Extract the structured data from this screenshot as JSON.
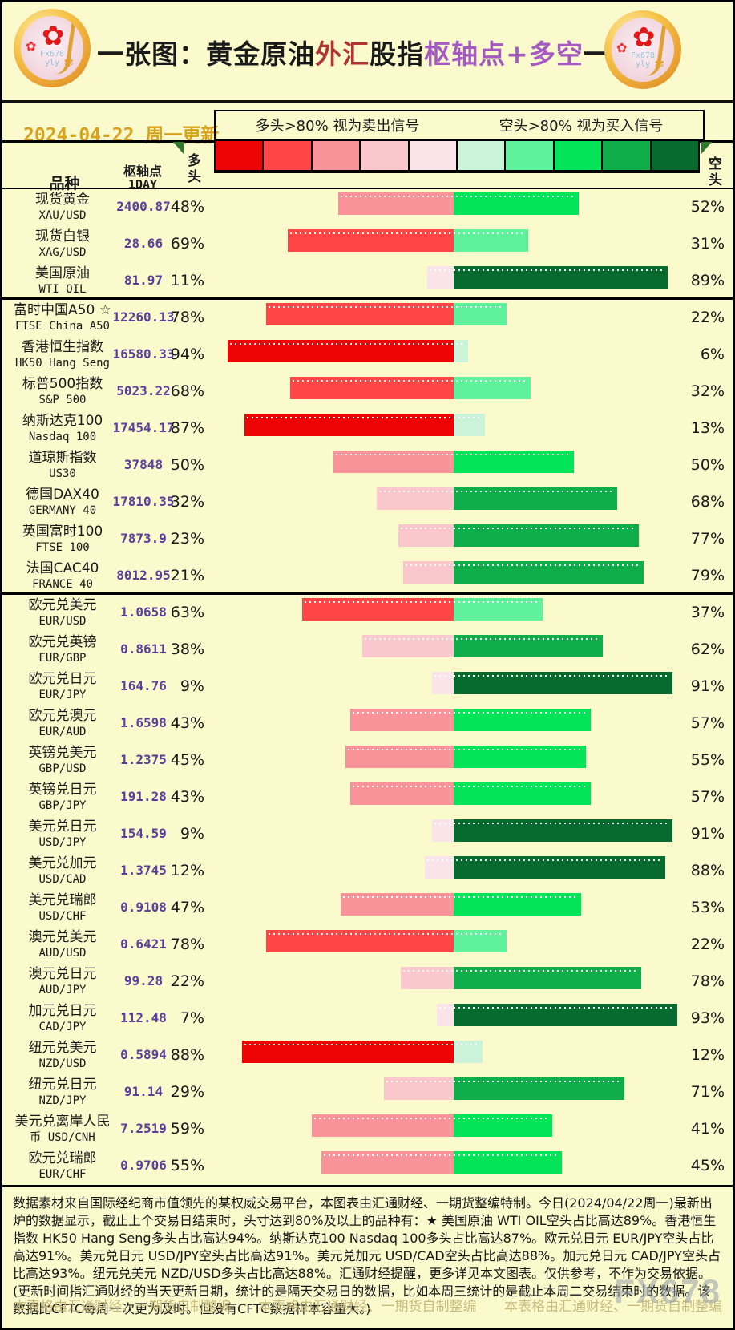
{
  "header": {
    "title_parts": [
      {
        "text": "一张图：黄金原油",
        "color": "#1a1a1a"
      },
      {
        "text": "外汇",
        "color": "#b03434"
      },
      {
        "text": "股指",
        "color": "#1a1a1a"
      },
      {
        "text": "枢轴点+多空",
        "color": "#a55ac2"
      },
      {
        "text": "一览",
        "color": "#1a1a1a"
      }
    ],
    "date": "2024-04-22 周一更新",
    "logo_mark_line1": "Fx678",
    "logo_mark_line2": "yly"
  },
  "legend": {
    "long_note": "多头>80% 视为卖出信号",
    "short_note": "空头>80% 视为买入信号"
  },
  "columns": {
    "product": "品种",
    "pivot_line1": "枢轴点",
    "pivot_line2": "1DAY",
    "long": "多头",
    "short": "空头"
  },
  "rows": [
    {
      "name": "现货黄金",
      "code": "XAU/USD",
      "pivot": "2400.87",
      "long": 48,
      "short": 52
    },
    {
      "name": "现货白银",
      "code": "XAG/USD",
      "pivot": "28.66",
      "long": 69,
      "short": 31
    },
    {
      "name": "美国原油",
      "code": "WTI OIL",
      "pivot": "81.97",
      "long": 11,
      "short": 89,
      "sep": true
    },
    {
      "name": "富时中国A50 ☆",
      "code": "FTSE China A50",
      "pivot": "12260.13",
      "long": 78,
      "short": 22
    },
    {
      "name": "香港恒生指数",
      "code": "HK50 Hang Seng",
      "pivot": "16580.33",
      "long": 94,
      "short": 6
    },
    {
      "name": "标普500指数",
      "code": "S&P 500",
      "pivot": "5023.22",
      "long": 68,
      "short": 32
    },
    {
      "name": "纳斯达克100",
      "code": "Nasdaq 100",
      "pivot": "17454.17",
      "long": 87,
      "short": 13
    },
    {
      "name": "道琼斯指数",
      "code": "US30",
      "pivot": "37848",
      "long": 50,
      "short": 50
    },
    {
      "name": "德国DAX40",
      "code": "GERMANY 40",
      "pivot": "17810.35",
      "long": 32,
      "short": 68
    },
    {
      "name": "英国富时100",
      "code": "FTSE 100",
      "pivot": "7873.9",
      "long": 23,
      "short": 77
    },
    {
      "name": "法国CAC40",
      "code": "FRANCE 40",
      "pivot": "8012.95",
      "long": 21,
      "short": 79,
      "sep": true
    },
    {
      "name": "欧元兑美元",
      "code": "EUR/USD",
      "pivot": "1.0658",
      "long": 63,
      "short": 37
    },
    {
      "name": "欧元兑英镑",
      "code": "EUR/GBP",
      "pivot": "0.8611",
      "long": 38,
      "short": 62
    },
    {
      "name": "欧元兑日元",
      "code": "EUR/JPY",
      "pivot": "164.76",
      "long": 9,
      "short": 91
    },
    {
      "name": "欧元兑澳元",
      "code": "EUR/AUD",
      "pivot": "1.6598",
      "long": 43,
      "short": 57
    },
    {
      "name": "英镑兑美元",
      "code": "GBP/USD",
      "pivot": "1.2375",
      "long": 45,
      "short": 55
    },
    {
      "name": "英镑兑日元",
      "code": "GBP/JPY",
      "pivot": "191.28",
      "long": 43,
      "short": 57
    },
    {
      "name": "美元兑日元",
      "code": "USD/JPY",
      "pivot": "154.59",
      "long": 9,
      "short": 91
    },
    {
      "name": "美元兑加元",
      "code": "USD/CAD",
      "pivot": "1.3745",
      "long": 12,
      "short": 88
    },
    {
      "name": "美元兑瑞郎",
      "code": "USD/CHF",
      "pivot": "0.9108",
      "long": 47,
      "short": 53
    },
    {
      "name": "澳元兑美元",
      "code": "AUD/USD",
      "pivot": "0.6421",
      "long": 78,
      "short": 22
    },
    {
      "name": "澳元兑日元",
      "code": "AUD/JPY",
      "pivot": "99.28",
      "long": 22,
      "short": 78
    },
    {
      "name": "加元兑日元",
      "code": "CAD/JPY",
      "pivot": "112.48",
      "long": 7,
      "short": 93
    },
    {
      "name": "纽元兑美元",
      "code": "NZD/USD",
      "pivot": "0.5894",
      "long": 88,
      "short": 12
    },
    {
      "name": "纽元兑日元",
      "code": "NZD/JPY",
      "pivot": "91.14",
      "long": 29,
      "short": 71
    },
    {
      "name": "美元兑离岸人民",
      "code": "USD/CNH",
      "name2": "币",
      "pivot": "7.2519",
      "long": 59,
      "short": 41
    },
    {
      "name": "欧元兑瑞郎",
      "code": "EUR/CHF",
      "pivot": "0.9706",
      "long": 55,
      "short": 45
    }
  ],
  "chart_data": {
    "type": "bar",
    "subtype": "diverging-horizontal",
    "title": "一张图：黄金原油外汇股指枢轴点+多空一览",
    "legend_position": "top",
    "scale_colors": [
      "#ee0404",
      "#ff4646",
      "#f89399",
      "#fac7cd",
      "#fbe3ea",
      "#cbf3da",
      "#5ff29c",
      "#03e458",
      "#0fae4b",
      "#076b2f"
    ],
    "color_rule": "bucket of 20% picks swatch: 多头 80-100→darkest red … 0-19→palest pink; 空头 0-19→palest green … 80-100→darkest green",
    "categories": [
      "XAU/USD",
      "XAG/USD",
      "WTI OIL",
      "FTSE China A50",
      "HK50 Hang Seng",
      "S&P 500",
      "Nasdaq 100",
      "US30",
      "GERMANY 40",
      "FTSE 100",
      "FRANCE 40",
      "EUR/USD",
      "EUR/GBP",
      "EUR/JPY",
      "EUR/AUD",
      "GBP/USD",
      "GBP/JPY",
      "USD/JPY",
      "USD/CAD",
      "USD/CHF",
      "AUD/USD",
      "AUD/JPY",
      "CAD/JPY",
      "NZD/USD",
      "NZD/JPY",
      "USD/CNH",
      "EUR/CHF"
    ],
    "series": [
      {
        "name": "多头",
        "values": [
          48,
          69,
          11,
          78,
          94,
          68,
          87,
          50,
          32,
          23,
          21,
          63,
          38,
          9,
          43,
          45,
          43,
          9,
          12,
          47,
          78,
          22,
          7,
          88,
          29,
          59,
          55
        ]
      },
      {
        "name": "空头",
        "values": [
          52,
          31,
          89,
          22,
          6,
          32,
          13,
          50,
          68,
          77,
          79,
          37,
          62,
          91,
          57,
          55,
          57,
          91,
          88,
          53,
          22,
          78,
          93,
          12,
          71,
          41,
          45
        ]
      }
    ],
    "pivot_1day": [
      "2400.87",
      "28.66",
      "81.97",
      "12260.13",
      "16580.33",
      "5023.22",
      "17454.17",
      "37848",
      "17810.35",
      "7873.9",
      "8012.95",
      "1.0658",
      "0.8611",
      "164.76",
      "1.6598",
      "1.2375",
      "191.28",
      "154.59",
      "1.3745",
      "0.9108",
      "0.6421",
      "99.28",
      "112.48",
      "0.5894",
      "91.14",
      "7.2519",
      "0.9706"
    ]
  },
  "footnote": {
    "text": "数据素材来自国际经纪商市值领先的某权威交易平台，本图表由汇通财经、一期货整编特制。今日(2024/04/22周一)最新出炉的数据显示，截止上个交易日结束时，头寸达到80%及以上的品种有：★ 美国原油 WTI OIL空头占比高达89%。香港恒生指数 HK50 Hang Seng多头占比高达94%。纳斯达克100 Nasdaq 100多头占比高达87%。欧元兑日元 EUR/JPY空头占比高达91%。美元兑日元 USD/JPY空头占比高达91%。美元兑加元 USD/CAD空头占比高达88%。加元兑日元 CAD/JPY空头占比高达93%。纽元兑美元 NZD/USD多头占比高达88%。汇通财经提醒，更多详见本文图表。仅供参考，不作为交易依据。(更新时间指汇通财经的当天更新日期，统计的是隔天交易日的数据，比如本周三统计的是截止本周二交易结束时的数据。该数据比CFTC每周一次更为及时。但没有CFTC数据样本容量大。)"
  },
  "footer": {
    "credit": "本表格由汇通财经、一期货自制整编",
    "watermark": "FX678"
  }
}
